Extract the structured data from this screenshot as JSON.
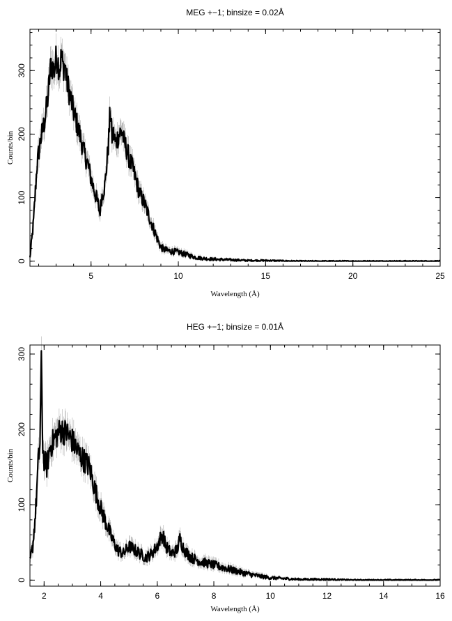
{
  "chart_data": [
    {
      "type": "line",
      "title": "MEG +−1; binsize = 0.02Å",
      "xlabel": "Wavelength (Å)",
      "ylabel": "Counts/bin",
      "xlim": [
        1.5,
        25
      ],
      "ylim": [
        -8,
        365
      ],
      "xticks": [
        5,
        10,
        15,
        20,
        25
      ],
      "yticks": [
        0,
        100,
        200,
        300
      ],
      "grid": false,
      "series": [
        {
          "x": [
            1.5,
            1.7,
            1.9,
            2.1,
            2.3,
            2.5,
            2.7,
            2.9,
            3.0,
            3.1,
            3.2,
            3.3,
            3.4,
            3.5,
            3.6,
            3.8,
            4.0,
            4.2,
            4.4,
            4.6,
            4.8,
            5.0,
            5.2,
            5.4,
            5.5,
            5.6,
            5.8,
            6.0,
            6.1,
            6.2,
            6.3,
            6.4,
            6.6,
            6.8,
            6.9,
            7.0,
            7.2,
            7.4,
            7.6,
            7.8,
            8.0,
            8.2,
            8.4,
            8.6,
            8.8,
            9.0,
            9.2,
            9.5,
            10.0,
            10.5,
            11.0,
            11.5,
            12.0,
            13.0,
            14.0,
            15.0,
            17.0,
            20.0,
            22.5,
            25.0
          ],
          "y": [
            5,
            60,
            150,
            190,
            215,
            250,
            310,
            300,
            320,
            315,
            300,
            325,
            305,
            310,
            285,
            260,
            235,
            215,
            195,
            170,
            155,
            130,
            110,
            90,
            75,
            100,
            120,
            185,
            240,
            195,
            200,
            185,
            200,
            205,
            185,
            180,
            160,
            145,
            125,
            105,
            95,
            80,
            65,
            50,
            35,
            22,
            18,
            16,
            14,
            10,
            6,
            4,
            3,
            2,
            1,
            1,
            0,
            0,
            0,
            0
          ]
        }
      ]
    },
    {
      "type": "line",
      "title": "HEG +−1; binsize = 0.01Å",
      "xlabel": "Wavelength (Å)",
      "ylabel": "Counts/bin",
      "xlim": [
        1.5,
        16
      ],
      "ylim": [
        -8,
        312
      ],
      "xticks": [
        2,
        4,
        6,
        8,
        10,
        12,
        14,
        16
      ],
      "yticks": [
        0,
        100,
        200,
        300
      ],
      "grid": false,
      "series": [
        {
          "x": [
            1.5,
            1.6,
            1.7,
            1.8,
            1.85,
            1.9,
            1.95,
            2.0,
            2.1,
            2.2,
            2.4,
            2.6,
            2.8,
            3.0,
            3.2,
            3.4,
            3.6,
            3.8,
            4.0,
            4.2,
            4.4,
            4.6,
            4.8,
            5.0,
            5.2,
            5.4,
            5.6,
            5.8,
            6.0,
            6.1,
            6.2,
            6.3,
            6.5,
            6.7,
            6.8,
            6.9,
            7.0,
            7.2,
            7.5,
            8.0,
            8.5,
            9.0,
            9.5,
            10.0,
            10.5,
            11.0,
            12.0,
            13.0,
            14.0,
            16.0
          ],
          "y": [
            25,
            45,
            90,
            160,
            175,
            290,
            180,
            160,
            150,
            175,
            190,
            200,
            195,
            185,
            170,
            160,
            150,
            120,
            95,
            75,
            55,
            40,
            35,
            45,
            40,
            35,
            30,
            35,
            45,
            55,
            60,
            45,
            35,
            40,
            55,
            45,
            38,
            30,
            25,
            20,
            15,
            10,
            6,
            3,
            2,
            1,
            1,
            0,
            0,
            0
          ]
        }
      ]
    }
  ]
}
